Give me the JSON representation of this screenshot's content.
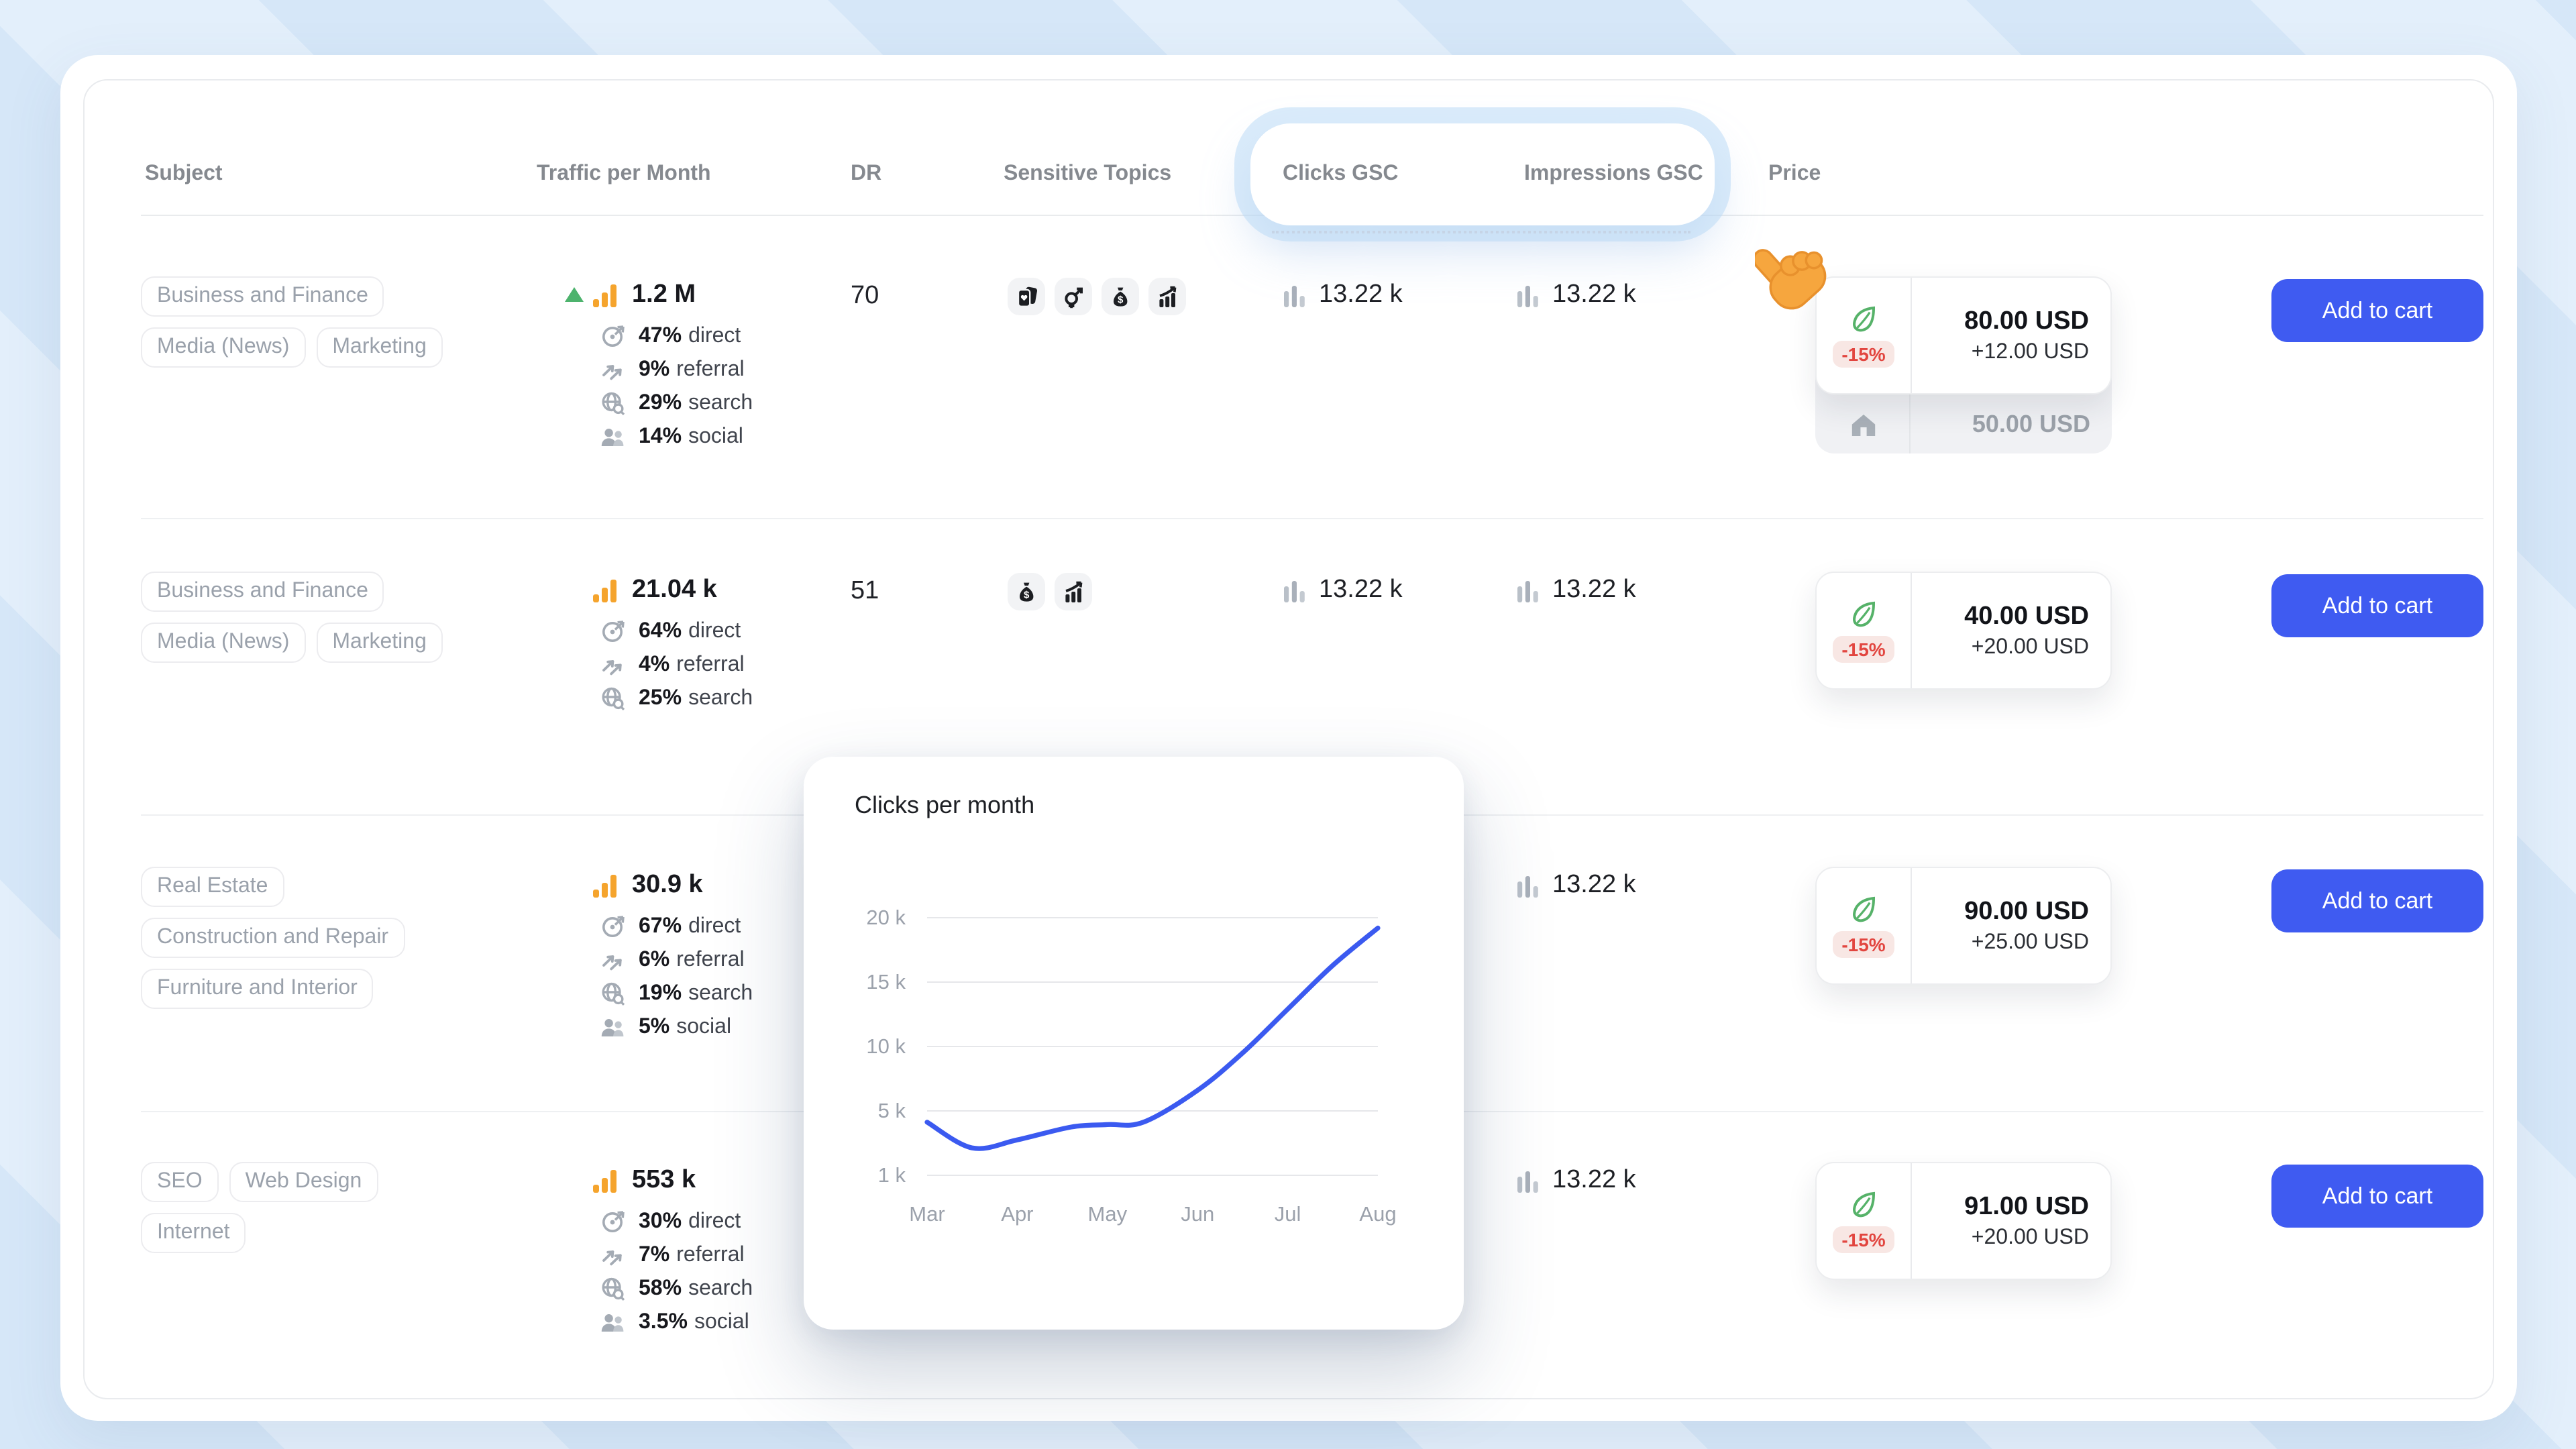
{
  "colors": {
    "accent_blue": "#3f5bf1",
    "chart_line": "#3b5af0",
    "discount_red": "#e2453f",
    "traffic_orange": "#f5a42d",
    "trend_green": "#4db36d",
    "leaf_green": "#56b269"
  },
  "header": {
    "columns": [
      "Subject",
      "Traffic per Month",
      "DR",
      "Sensitive Topics",
      "Clicks GSC",
      "Impressions GSC",
      "Price"
    ]
  },
  "rows": [
    {
      "tags": [
        "Business and Finance",
        "Media (News)",
        "Marketing"
      ],
      "traffic_total": "1.2 M",
      "trend": "up",
      "channels": [
        {
          "value": "47%",
          "label": "direct"
        },
        {
          "value": "9%",
          "label": "referral"
        },
        {
          "value": "29%",
          "label": "search"
        },
        {
          "value": "14%",
          "label": "social"
        }
      ],
      "dr": "70",
      "sensitive_topics": [
        "playing-cards",
        "gender",
        "money-bag",
        "trading-chart"
      ],
      "clicks_gsc": "13.22 k",
      "impressions_gsc": "13.22 k",
      "price": {
        "discount": "-15%",
        "main": "80.00 USD",
        "addon": "+12.00 USD",
        "base": "50.00 USD"
      },
      "cart_label": "Add to cart"
    },
    {
      "tags": [
        "Business and Finance",
        "Media (News)",
        "Marketing"
      ],
      "traffic_total": "21.04 k",
      "channels": [
        {
          "value": "64%",
          "label": "direct"
        },
        {
          "value": "4%",
          "label": "referral"
        },
        {
          "value": "25%",
          "label": "search"
        }
      ],
      "dr": "51",
      "sensitive_topics": [
        "money-bag",
        "trading-chart"
      ],
      "clicks_gsc": "13.22 k",
      "impressions_gsc": "13.22 k",
      "price": {
        "discount": "-15%",
        "main": "40.00 USD",
        "addon": "+20.00 USD"
      },
      "cart_label": "Add to cart"
    },
    {
      "tags": [
        "Real Estate",
        "Construction and Repair",
        "Furniture and Interior"
      ],
      "traffic_total": "30.9 k",
      "channels": [
        {
          "value": "67%",
          "label": "direct"
        },
        {
          "value": "6%",
          "label": "referral"
        },
        {
          "value": "19%",
          "label": "search"
        },
        {
          "value": "5%",
          "label": "social"
        }
      ],
      "impressions_gsc": "13.22 k",
      "price": {
        "discount": "-15%",
        "main": "90.00 USD",
        "addon": "+25.00 USD"
      },
      "cart_label": "Add to cart"
    },
    {
      "tags": [
        "SEO",
        "Web Design",
        "Internet"
      ],
      "traffic_total": "553 k",
      "channels": [
        {
          "value": "30%",
          "label": "direct"
        },
        {
          "value": "7%",
          "label": "referral"
        },
        {
          "value": "58%",
          "label": "search"
        },
        {
          "value": "3.5%",
          "label": "social"
        }
      ],
      "impressions_gsc": "13.22 k",
      "price": {
        "discount": "-15%",
        "main": "91.00 USD",
        "addon": "+20.00 USD"
      },
      "cart_label": "Add to cart"
    }
  ],
  "popover": {
    "title": "Clicks per month"
  },
  "chart_data": {
    "type": "line",
    "title": "Clicks per month",
    "x_tick_labels": [
      "Mar",
      "Apr",
      "May",
      "Jun",
      "Jul",
      "Aug"
    ],
    "y_tick_labels": [
      "20 k",
      "15 k",
      "10 k",
      "5 k",
      "1 k"
    ],
    "y_tick_values": [
      20000,
      15000,
      10000,
      5000,
      1000
    ],
    "grid": true,
    "legend": false,
    "line_color": "#3b5af0",
    "series": [
      {
        "name": "Clicks",
        "points": [
          [
            0,
            4300
          ],
          [
            0.5,
            2700
          ],
          [
            1,
            3200
          ],
          [
            1.6,
            4000
          ],
          [
            2,
            4150
          ],
          [
            2.4,
            4300
          ],
          [
            3,
            6600
          ],
          [
            3.5,
            9500
          ],
          [
            4,
            12900
          ],
          [
            4.5,
            16300
          ],
          [
            5,
            19200
          ]
        ]
      }
    ]
  }
}
